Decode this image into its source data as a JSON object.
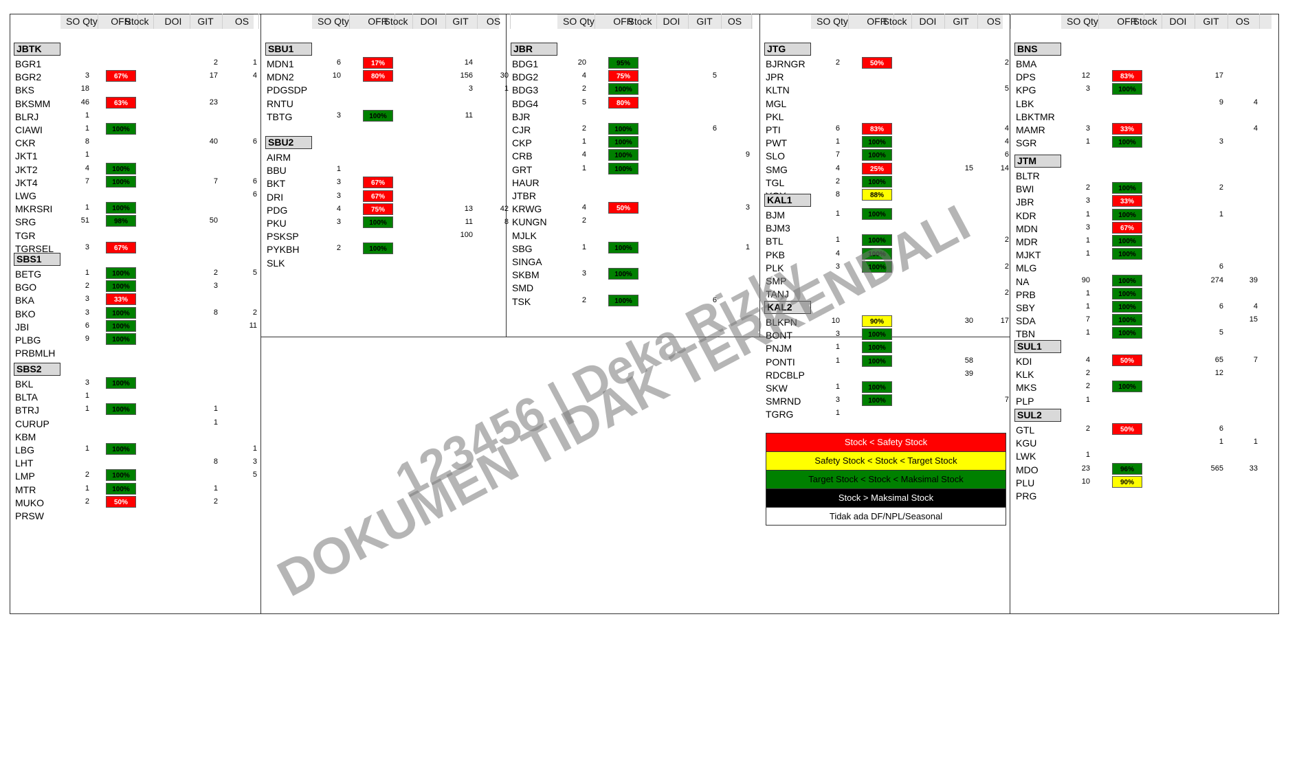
{
  "headers": [
    "SO Qty",
    "OFR",
    "Stock",
    "DOI",
    "GIT",
    "OS"
  ],
  "colors": {
    "red": "#ff0000",
    "green": "#008000",
    "yellow": "#ffff00",
    "black": "#000000"
  },
  "panels": [
    {
      "groups": [
        {
          "name": "JBTK",
          "rows": [
            {
              "n": "BGR1",
              "git": "2",
              "os": "1"
            },
            {
              "n": "BGR2",
              "so": "3",
              "ofr": "67%",
              "c": "red",
              "git": "17",
              "os": "4"
            },
            {
              "n": "BKS",
              "so": "18"
            },
            {
              "n": "BKSMM",
              "so": "46",
              "ofr": "63%",
              "c": "red",
              "git": "23"
            },
            {
              "n": "BLRJ",
              "so": "1"
            },
            {
              "n": "CIAWI",
              "so": "1",
              "ofr": "100%",
              "c": "green"
            },
            {
              "n": "CKR",
              "so": "8",
              "git": "40",
              "os": "6"
            },
            {
              "n": "JKT1",
              "so": "1"
            },
            {
              "n": "JKT2",
              "so": "4",
              "ofr": "100%",
              "c": "green"
            },
            {
              "n": "JKT4",
              "so": "7",
              "ofr": "100%",
              "c": "green",
              "git": "7",
              "os": "6"
            },
            {
              "n": "LWG",
              "os": "6"
            },
            {
              "n": "MKRSRI",
              "so": "1",
              "ofr": "100%",
              "c": "green"
            },
            {
              "n": "SRG",
              "so": "51",
              "ofr": "98%",
              "c": "green",
              "git": "50"
            },
            {
              "n": "TGR"
            },
            {
              "n": "TGRSEL",
              "so": "3",
              "ofr": "67%",
              "c": "red"
            }
          ]
        },
        {
          "name": "SBS1",
          "rows": [
            {
              "n": "BETG",
              "so": "1",
              "ofr": "100%",
              "c": "green",
              "git": "2",
              "os": "5"
            },
            {
              "n": "BGO",
              "so": "2",
              "ofr": "100%",
              "c": "green",
              "git": "3"
            },
            {
              "n": "BKA",
              "so": "3",
              "ofr": "33%",
              "c": "red"
            },
            {
              "n": "BKO",
              "so": "3",
              "ofr": "100%",
              "c": "green",
              "git": "8",
              "os": "2"
            },
            {
              "n": "JBI",
              "so": "6",
              "ofr": "100%",
              "c": "green",
              "os": "11"
            },
            {
              "n": "PLBG",
              "so": "9",
              "ofr": "100%",
              "c": "green"
            },
            {
              "n": "PRBMLH"
            }
          ]
        },
        {
          "name": "SBS2",
          "rows": [
            {
              "n": "BKL",
              "so": "3",
              "ofr": "100%",
              "c": "green"
            },
            {
              "n": "BLTA",
              "so": "1"
            },
            {
              "n": "BTRJ",
              "so": "1",
              "ofr": "100%",
              "c": "green",
              "git": "1"
            },
            {
              "n": "CURUP",
              "git": "1"
            },
            {
              "n": "KBM"
            },
            {
              "n": "LBG",
              "so": "1",
              "ofr": "100%",
              "c": "green",
              "os": "1"
            },
            {
              "n": "LHT",
              "git": "8",
              "os": "3"
            },
            {
              "n": "LMP",
              "so": "2",
              "ofr": "100%",
              "c": "green",
              "os": "5"
            },
            {
              "n": "MTR",
              "so": "1",
              "ofr": "100%",
              "c": "green",
              "git": "1"
            },
            {
              "n": "MUKO",
              "so": "2",
              "ofr": "50%",
              "c": "red",
              "git": "2"
            },
            {
              "n": "PRSW"
            }
          ]
        }
      ]
    },
    {
      "groups": [
        {
          "name": "SBU1",
          "rows": [
            {
              "n": "MDN1",
              "so": "6",
              "ofr": "17%",
              "c": "red",
              "git": "14"
            },
            {
              "n": "MDN2",
              "so": "10",
              "ofr": "80%",
              "c": "red",
              "git": "156",
              "os": "30"
            },
            {
              "n": "PDGSDP",
              "git": "3",
              "os": "1"
            },
            {
              "n": "RNTU"
            },
            {
              "n": "TBTG",
              "so": "3",
              "ofr": "100%",
              "c": "green",
              "git": "11"
            }
          ]
        },
        {
          "name": "SBU2",
          "rows": [
            {
              "n": "AIRM"
            },
            {
              "n": "BBU",
              "so": "1"
            },
            {
              "n": "BKT",
              "so": "3",
              "ofr": "67%",
              "c": "red"
            },
            {
              "n": "DRI",
              "so": "3",
              "ofr": "67%",
              "c": "red"
            },
            {
              "n": "PDG",
              "so": "4",
              "ofr": "75%",
              "c": "red",
              "git": "13",
              "os": "42"
            },
            {
              "n": "PKU",
              "so": "3",
              "ofr": "100%",
              "c": "green",
              "git": "11",
              "os": "8"
            },
            {
              "n": "PSKSP",
              "git": "100"
            },
            {
              "n": "PYKBH",
              "so": "2",
              "ofr": "100%",
              "c": "green"
            },
            {
              "n": "SLK"
            }
          ]
        }
      ]
    },
    {
      "groups": [
        {
          "name": "JBR",
          "rows": [
            {
              "n": "BDG1",
              "so": "20",
              "ofr": "95%",
              "c": "green"
            },
            {
              "n": "BDG2",
              "so": "4",
              "ofr": "75%",
              "c": "red",
              "git": "5"
            },
            {
              "n": "BDG3",
              "so": "2",
              "ofr": "100%",
              "c": "green"
            },
            {
              "n": "BDG4",
              "so": "5",
              "ofr": "80%",
              "c": "red"
            },
            {
              "n": "BJR"
            },
            {
              "n": "CJR",
              "so": "2",
              "ofr": "100%",
              "c": "green",
              "git": "6"
            },
            {
              "n": "CKP",
              "so": "1",
              "ofr": "100%",
              "c": "green"
            },
            {
              "n": "CRB",
              "so": "4",
              "ofr": "100%",
              "c": "green",
              "os": "9"
            },
            {
              "n": "GRT",
              "so": "1",
              "ofr": "100%",
              "c": "green"
            },
            {
              "n": "HAUR"
            },
            {
              "n": "JTBR"
            },
            {
              "n": "KRWG",
              "so": "4",
              "ofr": "50%",
              "c": "red",
              "os": "3"
            },
            {
              "n": "KUNGN",
              "so": "2"
            },
            {
              "n": "MJLK"
            },
            {
              "n": "SBG",
              "so": "1",
              "ofr": "100%",
              "c": "green",
              "os": "1"
            },
            {
              "n": "SINGA"
            },
            {
              "n": "SKBM",
              "so": "3",
              "ofr": "100%",
              "c": "green"
            },
            {
              "n": "SMD"
            },
            {
              "n": "TSK",
              "so": "2",
              "ofr": "100%",
              "c": "green",
              "git": "6"
            }
          ]
        }
      ]
    },
    {
      "groups": [
        {
          "name": "JTG",
          "rows": [
            {
              "n": "BJRNGR",
              "so": "2",
              "ofr": "50%",
              "c": "red",
              "os": "2"
            },
            {
              "n": "JPR"
            },
            {
              "n": "KLTN",
              "os": "5"
            },
            {
              "n": "MGL"
            },
            {
              "n": "PKL"
            },
            {
              "n": "PTI",
              "so": "6",
              "ofr": "83%",
              "c": "red",
              "os": "4"
            },
            {
              "n": "PWT",
              "so": "1",
              "ofr": "100%",
              "c": "green",
              "os": "4"
            },
            {
              "n": "SLO",
              "so": "7",
              "ofr": "100%",
              "c": "green",
              "os": "6"
            },
            {
              "n": "SMG",
              "so": "4",
              "ofr": "25%",
              "c": "red",
              "git": "15",
              "os": "14"
            },
            {
              "n": "TGL",
              "so": "2",
              "ofr": "100%",
              "c": "green"
            },
            {
              "n": "YGY",
              "so": "8",
              "ofr": "88%",
              "c": "yellow"
            }
          ]
        },
        {
          "name": "KAL1",
          "rows": [
            {
              "n": "BJM",
              "so": "1",
              "ofr": "100%",
              "c": "green"
            },
            {
              "n": "BJM3"
            },
            {
              "n": "BTL",
              "so": "1",
              "ofr": "100%",
              "c": "green",
              "os": "2"
            },
            {
              "n": "PKB",
              "so": "4",
              "ofr": "100%",
              "c": "green"
            },
            {
              "n": "PLK",
              "so": "3",
              "ofr": "100%",
              "c": "green",
              "os": "2"
            },
            {
              "n": "SMP"
            },
            {
              "n": "TANJ",
              "os": "2"
            }
          ]
        },
        {
          "name": "KAL2",
          "rows": [
            {
              "n": "BLKPN",
              "so": "10",
              "ofr": "90%",
              "c": "yellow",
              "git": "30",
              "os": "17"
            },
            {
              "n": "BONT",
              "so": "3",
              "ofr": "100%",
              "c": "green"
            },
            {
              "n": "PNJM",
              "so": "1",
              "ofr": "100%",
              "c": "green"
            },
            {
              "n": "PONTI",
              "so": "1",
              "ofr": "100%",
              "c": "green",
              "git": "58"
            },
            {
              "n": "RDCBLP",
              "git": "39"
            },
            {
              "n": "SKW",
              "so": "1",
              "ofr": "100%",
              "c": "green"
            },
            {
              "n": "SMRND",
              "so": "3",
              "ofr": "100%",
              "c": "green",
              "os": "7"
            },
            {
              "n": "TGRG",
              "so": "1"
            }
          ]
        }
      ]
    },
    {
      "groups": [
        {
          "name": "BNS",
          "rows": [
            {
              "n": "BMA"
            },
            {
              "n": "DPS",
              "so": "12",
              "ofr": "83%",
              "c": "red",
              "git": "17"
            },
            {
              "n": "KPG",
              "so": "3",
              "ofr": "100%",
              "c": "green"
            },
            {
              "n": "LBK",
              "git": "9",
              "os": "4"
            },
            {
              "n": "LBKTMR"
            },
            {
              "n": "MAMR",
              "so": "3",
              "ofr": "33%",
              "c": "red",
              "os": "4"
            },
            {
              "n": "SGR",
              "so": "1",
              "ofr": "100%",
              "c": "green",
              "git": "3"
            }
          ]
        },
        {
          "name": "JTM",
          "rows": [
            {
              "n": "BLTR"
            },
            {
              "n": "BWI",
              "so": "2",
              "ofr": "100%",
              "c": "green",
              "git": "2"
            },
            {
              "n": "JBR",
              "so": "3",
              "ofr": "33%",
              "c": "red"
            },
            {
              "n": "KDR",
              "so": "1",
              "ofr": "100%",
              "c": "green",
              "git": "1"
            },
            {
              "n": "MDN",
              "so": "3",
              "ofr": "67%",
              "c": "red"
            },
            {
              "n": "MDR",
              "so": "1",
              "ofr": "100%",
              "c": "green"
            },
            {
              "n": "MJKT",
              "so": "1",
              "ofr": "100%",
              "c": "green"
            },
            {
              "n": "MLG",
              "git": "6"
            },
            {
              "n": "NA",
              "so": "90",
              "ofr": "100%",
              "c": "green",
              "git": "274",
              "os": "39"
            },
            {
              "n": "PRB",
              "so": "1",
              "ofr": "100%",
              "c": "green"
            },
            {
              "n": "SBY",
              "so": "1",
              "ofr": "100%",
              "c": "green",
              "git": "6",
              "os": "4"
            },
            {
              "n": "SDA",
              "so": "7",
              "ofr": "100%",
              "c": "green",
              "os": "15"
            },
            {
              "n": "TBN",
              "so": "1",
              "ofr": "100%",
              "c": "green",
              "git": "5"
            }
          ]
        },
        {
          "name": "SUL1",
          "rows": [
            {
              "n": "KDI",
              "so": "4",
              "ofr": "50%",
              "c": "red",
              "git": "65",
              "os": "7"
            },
            {
              "n": "KLK",
              "so": "2",
              "git": "12"
            },
            {
              "n": "MKS",
              "so": "2",
              "ofr": "100%",
              "c": "green"
            },
            {
              "n": "PLP",
              "so": "1"
            }
          ]
        },
        {
          "name": "SUL2",
          "rows": [
            {
              "n": "GTL",
              "so": "2",
              "ofr": "50%",
              "c": "red",
              "git": "6"
            },
            {
              "n": "KGU",
              "git": "1",
              "os": "1"
            },
            {
              "n": "LWK",
              "so": "1"
            },
            {
              "n": "MDO",
              "so": "23",
              "ofr": "96%",
              "c": "green",
              "git": "565",
              "os": "33"
            },
            {
              "n": "PLU",
              "so": "10",
              "ofr": "90%",
              "c": "yellow"
            },
            {
              "n": "PRG"
            }
          ]
        }
      ]
    }
  ],
  "legend": [
    {
      "label": "Stock < Safety Stock",
      "bg": "#ff0000",
      "fg": "#ffffff"
    },
    {
      "label": "Safety Stock < Stock < Target Stock",
      "bg": "#ffff00",
      "fg": "#000000"
    },
    {
      "label": "Target Stock < Stock < Maksimal Stock",
      "bg": "#008000",
      "fg": "#000000"
    },
    {
      "label": "Stock > Maksimal Stock",
      "bg": "#000000",
      "fg": "#ffffff"
    },
    {
      "label": "Tidak ada DF/NPL/Seasonal",
      "bg": "#ffffff",
      "fg": "#000000"
    }
  ],
  "watermark": [
    "123456 | Deka Rizky",
    "DOKUMEN TIDAK TERKENDALI"
  ]
}
